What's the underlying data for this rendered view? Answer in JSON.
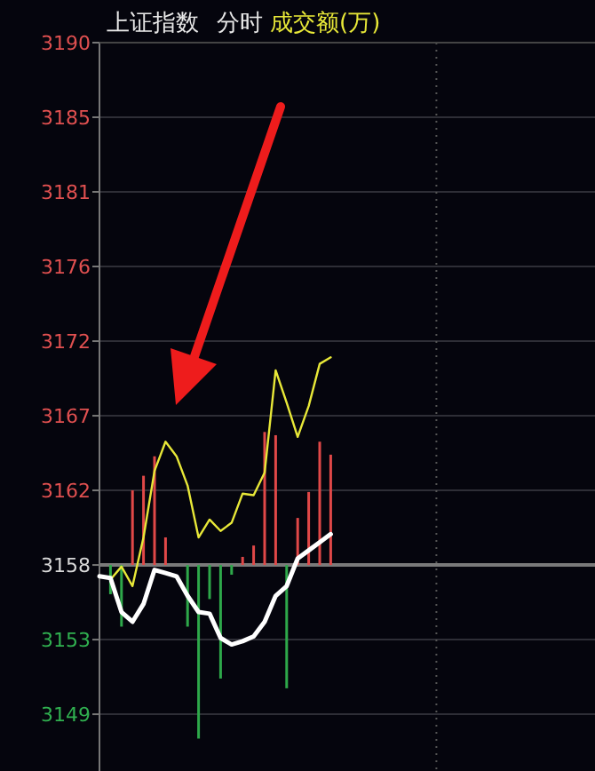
{
  "chart_data": {
    "type": "line",
    "title": "上证指数",
    "subtitle": "分时",
    "categories": [
      null,
      null,
      null,
      null,
      null,
      null,
      null,
      null,
      null,
      null,
      null,
      null,
      null,
      null,
      null,
      null,
      null,
      null,
      null,
      null,
      null,
      null,
      null,
      null,
      null,
      null,
      null,
      null,
      null,
      null,
      null,
      null,
      null,
      null,
      null,
      null,
      null,
      null,
      null,
      null,
      null,
      null,
      null,
      null,
      null,
      null
    ],
    "ylim": [
      3145.1,
      3190.0
    ],
    "yticks": [
      {
        "value": 3148.6,
        "label": "3149"
      },
      {
        "value": 3153.2,
        "label": "3153"
      },
      {
        "value": 3157.8,
        "label": "3158"
      },
      {
        "value": 3162.4,
        "label": "3162"
      },
      {
        "value": 3167.0,
        "label": "3167"
      },
      {
        "value": 3171.6,
        "label": "3172"
      },
      {
        "value": 3176.2,
        "label": "3176"
      },
      {
        "value": 3180.8,
        "label": "3181"
      },
      {
        "value": 3185.4,
        "label": "3185"
      },
      {
        "value": 3190.0,
        "label": "3190"
      }
    ],
    "tick_labels": "y",
    "grid": true,
    "ref_lines": [
      {
        "axis": "y",
        "value": 3157.8,
        "color": "#7a7a7a"
      }
    ],
    "series": [
      {
        "type": "bar",
        "base": [
          null,
          3157.8,
          3157.8,
          3157.8,
          3157.8,
          3157.8,
          3157.8,
          null,
          3157.8,
          3157.8,
          3157.8,
          3157.8,
          3157.8,
          3157.8,
          3157.8,
          3157.8,
          3157.8,
          3157.8,
          3157.8,
          3157.8,
          3157.8,
          3157.8,
          null,
          null,
          null,
          null,
          null,
          null,
          null,
          null,
          null,
          null,
          null,
          null,
          null,
          null,
          null,
          null,
          null,
          null,
          null,
          null,
          null,
          null,
          null,
          null
        ],
        "values": [
          null,
          -1.8,
          -3.8,
          4.6,
          5.5,
          6.7,
          1.7,
          null,
          -3.8,
          -10.7,
          -2.1,
          -7.0,
          -0.6,
          0.5,
          1.2,
          8.2,
          8.0,
          -7.6,
          2.9,
          4.5,
          7.6,
          6.8,
          null,
          null,
          null,
          null,
          null,
          null,
          null,
          null,
          null,
          null,
          null,
          null,
          null,
          null,
          null,
          null,
          null,
          null,
          null,
          null,
          null,
          null,
          null,
          null
        ],
        "colors": [
          null,
          "#2ea84a",
          "#2ea84a",
          "#e04848",
          "#e04848",
          "#e04848",
          "#e04848",
          null,
          "#2ea84a",
          "#2ea84a",
          "#2ea84a",
          "#2ea84a",
          "#2ea84a",
          "#e04848",
          "#e04848",
          "#e04848",
          "#e04848",
          "#2ea84a",
          "#e04848",
          "#e04848",
          "#e04848",
          "#e04848",
          null,
          null,
          null,
          null,
          null,
          null,
          null,
          null,
          null,
          null,
          null,
          null,
          null,
          null,
          null,
          null,
          null,
          null,
          null,
          null,
          null,
          null,
          null,
          null
        ]
      },
      {
        "type": "line",
        "name": "成交额(万)",
        "color": "#e8e838",
        "values": [
          null,
          3156.9,
          3157.7,
          3156.5,
          3159.5,
          3163.6,
          3165.4,
          3164.5,
          3162.7,
          3159.5,
          3160.6,
          3159.9,
          3160.4,
          3162.2,
          3162.1,
          3163.5,
          3169.8,
          3167.8,
          3165.7,
          3167.6,
          3170.2,
          3170.6,
          null,
          null,
          null,
          null,
          null,
          null,
          null,
          null,
          null,
          null,
          null,
          null,
          null,
          null,
          null,
          null,
          null,
          null,
          null,
          null,
          null,
          null,
          null,
          null
        ]
      },
      {
        "color": "#ffffff",
        "values": [
          3157.1,
          3157.0,
          3154.9,
          3154.3,
          3155.4,
          3157.5,
          3157.3,
          3157.1,
          3155.9,
          3154.9,
          3154.8,
          3153.3,
          3152.9,
          3153.1,
          3153.4,
          3154.3,
          3155.9,
          3156.5,
          3158.2,
          3158.7,
          3159.2,
          3159.7,
          null,
          null,
          null,
          null,
          null,
          null,
          null,
          null,
          null,
          null,
          null,
          null,
          null,
          null,
          null,
          null,
          null,
          null,
          null,
          null,
          null,
          null,
          null,
          null
        ]
      }
    ]
  }
}
